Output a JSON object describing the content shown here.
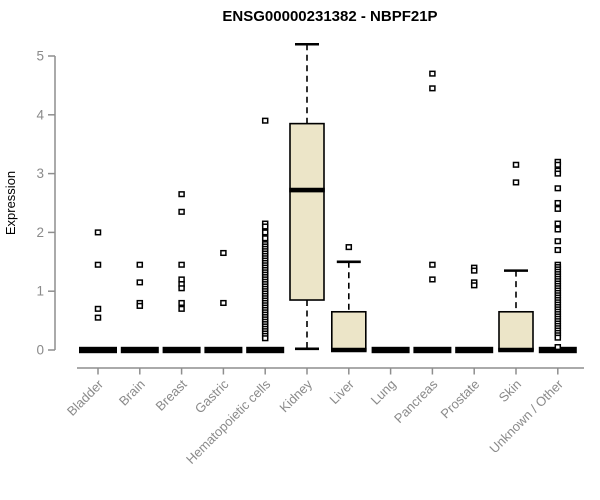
{
  "chart_data": {
    "type": "boxplot",
    "title": "ENSG00000231382 - NBPF21P",
    "ylabel": "Expression",
    "xlabel": "",
    "ylim": [
      0,
      5.3
    ],
    "yticks": [
      0,
      1,
      2,
      3,
      4,
      5
    ],
    "grid": false,
    "legend": "none",
    "categories": [
      "Bladder",
      "Brain",
      "Breast",
      "Gastric",
      "Hematopoietic cells",
      "Kidney",
      "Liver",
      "Lung",
      "Pancreas",
      "Prostate",
      "Skin",
      "Unknown / Other"
    ],
    "series": [
      {
        "category": "Bladder",
        "q1": 0,
        "median": 0,
        "q3": 0,
        "whisker_low": 0,
        "whisker_high": 0,
        "outliers": [
          2.0,
          1.45,
          0.7,
          0.55
        ]
      },
      {
        "category": "Brain",
        "q1": 0,
        "median": 0,
        "q3": 0,
        "whisker_low": 0,
        "whisker_high": 0,
        "outliers": [
          1.45,
          1.15,
          0.8,
          0.75
        ]
      },
      {
        "category": "Breast",
        "q1": 0,
        "median": 0,
        "q3": 0,
        "whisker_low": 0,
        "whisker_high": 0,
        "outliers": [
          2.65,
          2.35,
          1.45,
          1.2,
          1.12,
          1.05,
          0.8,
          0.7
        ]
      },
      {
        "category": "Gastric",
        "q1": 0,
        "median": 0,
        "q3": 0,
        "whisker_low": 0,
        "whisker_high": 0,
        "outliers": [
          1.65,
          0.8
        ]
      },
      {
        "category": "Hematopoietic cells",
        "q1": 0,
        "median": 0,
        "q3": 0,
        "whisker_low": 0,
        "whisker_high": 0,
        "outliers": [
          3.9,
          2.15,
          2.1,
          2.0,
          1.9,
          1.8,
          1.76,
          1.72,
          1.68,
          1.64,
          1.6,
          1.56,
          1.52,
          1.48,
          1.44,
          1.4,
          1.36,
          1.32,
          1.28,
          1.24,
          1.2,
          1.16,
          1.12,
          1.08,
          1.04,
          1.0,
          0.96,
          0.92,
          0.88,
          0.84,
          0.8,
          0.76,
          0.72,
          0.68,
          0.64,
          0.6,
          0.56,
          0.52,
          0.48,
          0.44,
          0.4,
          0.36,
          0.32,
          0.28,
          0.24,
          0.2
        ]
      },
      {
        "category": "Kidney",
        "q1": 0.85,
        "median": 2.72,
        "q3": 3.85,
        "whisker_low": 0.02,
        "whisker_high": 5.2,
        "outliers": []
      },
      {
        "category": "Liver",
        "q1": 0,
        "median": 0,
        "q3": 0.65,
        "whisker_low": 0,
        "whisker_high": 1.5,
        "outliers": [
          1.75
        ]
      },
      {
        "category": "Lung",
        "q1": 0,
        "median": 0,
        "q3": 0,
        "whisker_low": 0,
        "whisker_high": 0,
        "outliers": []
      },
      {
        "category": "Pancreas",
        "q1": 0,
        "median": 0,
        "q3": 0,
        "whisker_low": 0,
        "whisker_high": 0,
        "outliers": [
          4.7,
          4.45,
          1.45,
          1.2
        ]
      },
      {
        "category": "Prostate",
        "q1": 0,
        "median": 0,
        "q3": 0,
        "whisker_low": 0,
        "whisker_high": 0,
        "outliers": [
          1.4,
          1.35,
          1.15,
          1.1
        ]
      },
      {
        "category": "Skin",
        "q1": 0,
        "median": 0,
        "q3": 0.65,
        "whisker_low": 0,
        "whisker_high": 1.35,
        "outliers": [
          3.15,
          2.85
        ]
      },
      {
        "category": "Unknown / Other",
        "q1": 0,
        "median": 0,
        "q3": 0,
        "whisker_low": 0,
        "whisker_high": 0,
        "outliers": [
          3.2,
          3.15,
          3.05,
          3.0,
          2.75,
          2.5,
          2.4,
          2.15,
          2.05,
          1.85,
          1.7,
          1.45,
          1.41,
          1.37,
          1.33,
          1.29,
          1.25,
          1.21,
          1.17,
          1.13,
          1.09,
          1.05,
          1.01,
          0.97,
          0.93,
          0.89,
          0.85,
          0.81,
          0.77,
          0.73,
          0.69,
          0.65,
          0.61,
          0.57,
          0.53,
          0.49,
          0.45,
          0.41,
          0.37,
          0.33,
          0.29,
          0.25,
          0.21,
          0.05
        ]
      }
    ],
    "colors": {
      "box_fill": "#ece5c8",
      "box_stroke": "#000000",
      "median": "#000000",
      "whisker": "#000000",
      "outlier_stroke": "#000000",
      "outlier_fill": "#ffffff",
      "axis": "#8e8e8e",
      "tick_label": "#8a8a8a",
      "title": "#000000"
    }
  }
}
